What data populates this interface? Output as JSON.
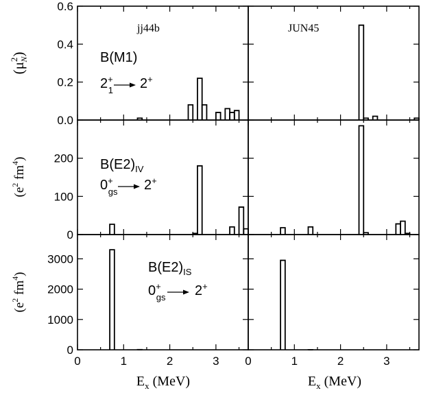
{
  "figure": {
    "ylabels": {
      "row1": {
        "main": "(μ",
        "sup": "2",
        "sub": "N",
        "close": ")"
      },
      "row2": {
        "main": "(e",
        "sup1": "2",
        "mid": " fm",
        "sup2": "4",
        "close": ")"
      },
      "row3": {
        "main": "(e",
        "sup1": "2",
        "mid": " fm",
        "sup2": "4",
        "close": ")"
      }
    },
    "xlabel": {
      "main": "E",
      "sub": "x",
      "unit": " (MeV)"
    },
    "panel_labels": {
      "left": "jj44b",
      "right": "JUN45"
    },
    "annotations": {
      "row1": {
        "title": "B(M1)",
        "t_a": "2",
        "t_a_sup": "+",
        "t_a_sub": "1",
        "t_b": "2",
        "t_b_sup": "+"
      },
      "row2": {
        "title": "B(E2)",
        "title_sub": "IV",
        "t_a": "0",
        "t_a_sup": "+",
        "t_a_sub": "gs",
        "t_b": "2",
        "t_b_sup": "+"
      },
      "row3": {
        "title": "B(E2)",
        "title_sub": "IS",
        "t_a": "0",
        "t_a_sup": "+",
        "t_a_sub": "gs",
        "t_b": "2",
        "t_b_sup": "+"
      }
    }
  },
  "chart_data": [
    {
      "type": "bar",
      "name": "jj44b B(M1)",
      "row": 1,
      "col": 1,
      "xlim": [
        0,
        3.7
      ],
      "ylim": [
        0,
        0.6
      ],
      "yticks": [
        "0.0",
        "0.2",
        "0.4",
        "0.6"
      ],
      "xticks": [
        "0",
        "1",
        "2",
        "3"
      ],
      "bin_width": 0.1,
      "x": [
        1.35,
        2.45,
        2.65,
        2.75,
        3.05,
        3.25,
        3.35,
        3.45
      ],
      "values": [
        0.01,
        0.08,
        0.22,
        0.08,
        0.04,
        0.06,
        0.04,
        0.05
      ]
    },
    {
      "type": "bar",
      "name": "JUN45 B(M1)",
      "row": 1,
      "col": 2,
      "xlim": [
        0,
        3.7
      ],
      "ylim": [
        0,
        0.6
      ],
      "yticks": [
        "0.0",
        "0.2",
        "0.4",
        "0.6"
      ],
      "xticks": [
        "0",
        "1",
        "2",
        "3"
      ],
      "bin_width": 0.1,
      "x": [
        2.45,
        2.55,
        2.75,
        3.65
      ],
      "values": [
        0.5,
        0.01,
        0.02,
        0.01
      ]
    },
    {
      "type": "bar",
      "name": "jj44b B(E2)IV",
      "row": 2,
      "col": 1,
      "xlim": [
        0,
        3.7
      ],
      "ylim": [
        0,
        300
      ],
      "yticks": [
        "0",
        "100",
        "200"
      ],
      "xticks": [
        "0",
        "1",
        "2",
        "3"
      ],
      "bin_width": 0.1,
      "x": [
        0.75,
        2.55,
        2.65,
        3.35,
        3.55,
        3.65
      ],
      "values": [
        27,
        3,
        180,
        20,
        72,
        15
      ]
    },
    {
      "type": "bar",
      "name": "JUN45 B(E2)IV",
      "row": 2,
      "col": 2,
      "xlim": [
        0,
        3.7
      ],
      "ylim": [
        0,
        300
      ],
      "yticks": [
        "0",
        "100",
        "200"
      ],
      "xticks": [
        "0",
        "1",
        "2",
        "3"
      ],
      "bin_width": 0.1,
      "x": [
        0.75,
        1.35,
        2.45,
        2.55,
        3.25,
        3.35,
        3.45
      ],
      "values": [
        18,
        20,
        285,
        5,
        28,
        35,
        3
      ]
    },
    {
      "type": "bar",
      "name": "jj44b B(E2)IS",
      "row": 3,
      "col": 1,
      "xlim": [
        0,
        3.7
      ],
      "ylim": [
        0,
        3800
      ],
      "yticks": [
        "0",
        "1000",
        "2000",
        "3000"
      ],
      "xticks": [
        "0",
        "1",
        "2",
        "3"
      ],
      "bin_width": 0.1,
      "x": [
        0.75,
        1.35
      ],
      "values": [
        3300,
        5
      ]
    },
    {
      "type": "bar",
      "name": "JUN45 B(E2)IS",
      "row": 3,
      "col": 2,
      "xlim": [
        0,
        3.7
      ],
      "ylim": [
        0,
        3800
      ],
      "yticks": [
        "0",
        "1000",
        "2000",
        "3000"
      ],
      "xticks": [
        "0",
        "1",
        "2",
        "3"
      ],
      "bin_width": 0.1,
      "x": [
        0.75,
        1.35
      ],
      "values": [
        2950,
        3
      ]
    }
  ]
}
